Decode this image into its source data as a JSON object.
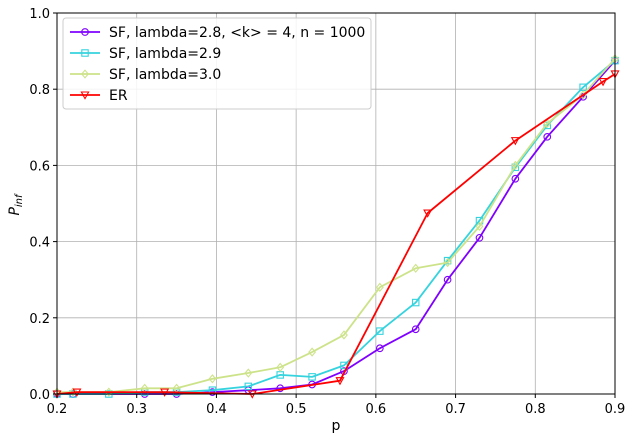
{
  "chart_data": {
    "type": "line",
    "xlabel": "p",
    "ylabel": "P",
    "ylabel_sub": "inf",
    "xlim": [
      0.2,
      0.9
    ],
    "ylim": [
      0.0,
      1.0
    ],
    "xticks": [
      "0.2",
      "0.3",
      "0.4",
      "0.5",
      "0.6",
      "0.7",
      "0.8",
      "0.9"
    ],
    "yticks": [
      "0.0",
      "0.2",
      "0.4",
      "0.6",
      "0.8",
      "1.0"
    ],
    "grid": true,
    "legend_position": "top-left",
    "series": [
      {
        "name": "SF, lambda=2.8, <k> = 4, n = 1000",
        "color": "#7f00ff",
        "marker": "circle",
        "x": [
          0.2,
          0.22,
          0.31,
          0.35,
          0.395,
          0.44,
          0.48,
          0.52,
          0.56,
          0.605,
          0.65,
          0.69,
          0.73,
          0.775,
          0.815,
          0.86,
          0.9
        ],
        "y": [
          0.0,
          0.0,
          0.0,
          0.0,
          0.005,
          0.01,
          0.015,
          0.025,
          0.06,
          0.12,
          0.17,
          0.3,
          0.41,
          0.565,
          0.675,
          0.78,
          0.875
        ]
      },
      {
        "name": "SF, lambda=2.9",
        "color": "#35d3de",
        "marker": "square",
        "x": [
          0.2,
          0.22,
          0.265,
          0.31,
          0.35,
          0.395,
          0.44,
          0.48,
          0.52,
          0.56,
          0.605,
          0.65,
          0.69,
          0.73,
          0.775,
          0.815,
          0.86,
          0.9
        ],
        "y": [
          0.0,
          0.0,
          0.0,
          0.005,
          0.005,
          0.01,
          0.02,
          0.05,
          0.045,
          0.075,
          0.165,
          0.24,
          0.35,
          0.455,
          0.595,
          0.705,
          0.805,
          0.875
        ]
      },
      {
        "name": "SF, lambda=3.0",
        "color": "#cde38a",
        "marker": "diamond",
        "x": [
          0.2,
          0.22,
          0.265,
          0.31,
          0.35,
          0.395,
          0.44,
          0.48,
          0.52,
          0.56,
          0.605,
          0.65,
          0.69,
          0.73,
          0.775,
          0.815,
          0.86,
          0.9
        ],
        "y": [
          0.005,
          0.005,
          0.005,
          0.015,
          0.015,
          0.04,
          0.055,
          0.07,
          0.11,
          0.155,
          0.28,
          0.33,
          0.345,
          0.44,
          0.6,
          0.71,
          0.785,
          0.88
        ]
      },
      {
        "name": "ER",
        "color": "#ff0000",
        "marker": "triangle-down",
        "x": [
          0.2,
          0.225,
          0.335,
          0.445,
          0.555,
          0.665,
          0.775,
          0.885,
          0.9
        ],
        "y": [
          0.0,
          0.005,
          0.005,
          0.0,
          0.035,
          0.475,
          0.665,
          0.82,
          0.84
        ]
      }
    ]
  }
}
